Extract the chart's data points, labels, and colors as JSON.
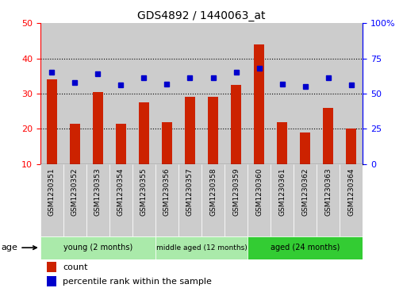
{
  "title": "GDS4892 / 1440063_at",
  "samples": [
    "GSM1230351",
    "GSM1230352",
    "GSM1230353",
    "GSM1230354",
    "GSM1230355",
    "GSM1230356",
    "GSM1230357",
    "GSM1230358",
    "GSM1230359",
    "GSM1230360",
    "GSM1230361",
    "GSM1230362",
    "GSM1230363",
    "GSM1230364"
  ],
  "counts": [
    34,
    21.5,
    30.5,
    21.5,
    27.5,
    22,
    29,
    29,
    32.5,
    44,
    22,
    19,
    26,
    20
  ],
  "percentile_ranks": [
    65,
    58,
    64,
    56,
    61,
    57,
    61,
    61,
    65,
    68,
    57,
    55,
    61,
    56
  ],
  "groups": [
    {
      "label": "young (2 months)",
      "start": 0,
      "end": 5,
      "color": "#AAEAAA"
    },
    {
      "label": "middle aged (12 months)",
      "start": 5,
      "end": 9,
      "color": "#AAEAAA"
    },
    {
      "label": "aged (24 months)",
      "start": 9,
      "end": 14,
      "color": "#33CC33"
    }
  ],
  "ylim_left": [
    10,
    50
  ],
  "ylim_right": [
    0,
    100
  ],
  "yticks_left": [
    10,
    20,
    30,
    40,
    50
  ],
  "yticks_right": [
    0,
    25,
    50,
    75,
    100
  ],
  "hgrid_vals": [
    20,
    30,
    40
  ],
  "bar_color": "#CC2200",
  "dot_color": "#0000CC",
  "col_bg_color": "#CCCCCC",
  "legend_count_label": "count",
  "legend_pct_label": "percentile rank within the sample"
}
